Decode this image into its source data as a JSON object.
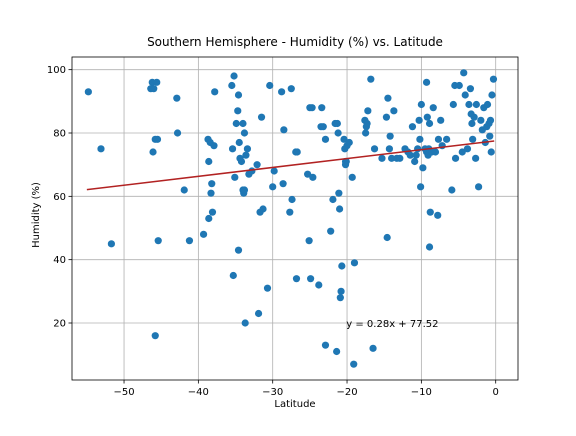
{
  "chart_data": {
    "type": "scatter",
    "title": "Southern Hemisphere - Humidity (%) vs. Latitude",
    "xlabel": "Latitude",
    "ylabel": "Humidity (%)",
    "xlim": [
      -57,
      3
    ],
    "ylim": [
      2,
      104
    ],
    "x_ticks": [
      -50,
      -40,
      -30,
      -20,
      -10,
      0
    ],
    "y_ticks": [
      20,
      40,
      60,
      80,
      100
    ],
    "grid": true,
    "marker_color": "#1f77b4",
    "line_color": "#b22222",
    "regression": {
      "slope": 0.28,
      "intercept": 77.52,
      "x_range": [
        -55,
        -0.2
      ],
      "equation": "y = 0.28x + 77.52",
      "equation_at": [
        -20.1,
        20
      ]
    },
    "points": [
      [
        -54.8,
        93
      ],
      [
        -53.1,
        75
      ],
      [
        -51.7,
        45
      ],
      [
        -46.4,
        94
      ],
      [
        -46.2,
        96
      ],
      [
        -46.0,
        94
      ],
      [
        -45.6,
        96
      ],
      [
        -45.8,
        78
      ],
      [
        -46.1,
        74
      ],
      [
        -45.5,
        78
      ],
      [
        -45.4,
        46
      ],
      [
        -45.8,
        16
      ],
      [
        -42.9,
        91
      ],
      [
        -42.8,
        80
      ],
      [
        -41.9,
        62
      ],
      [
        -41.2,
        46
      ],
      [
        -39.3,
        48
      ],
      [
        -38.7,
        78
      ],
      [
        -38.4,
        77
      ],
      [
        -37.9,
        76
      ],
      [
        -38.6,
        71
      ],
      [
        -38.6,
        53
      ],
      [
        -38.1,
        55
      ],
      [
        -38.3,
        61
      ],
      [
        -38.2,
        64
      ],
      [
        -37.8,
        93
      ],
      [
        -35.5,
        95
      ],
      [
        -35.2,
        98
      ],
      [
        -35.4,
        75
      ],
      [
        -35.1,
        66
      ],
      [
        -35.3,
        35
      ],
      [
        -34.9,
        83
      ],
      [
        -34.6,
        92
      ],
      [
        -34.7,
        87
      ],
      [
        -34.5,
        77
      ],
      [
        -34.4,
        72
      ],
      [
        -34.2,
        71
      ],
      [
        -34.0,
        83
      ],
      [
        -33.8,
        80
      ],
      [
        -33.6,
        73
      ],
      [
        -33.9,
        61
      ],
      [
        -34.0,
        62
      ],
      [
        -33.8,
        62
      ],
      [
        -33.7,
        20
      ],
      [
        -34.6,
        43
      ],
      [
        -33.2,
        67
      ],
      [
        -33.4,
        75
      ],
      [
        -32.8,
        68
      ],
      [
        -32.1,
        70
      ],
      [
        -31.7,
        55
      ],
      [
        -31.5,
        85
      ],
      [
        -31.3,
        56
      ],
      [
        -30.7,
        31
      ],
      [
        -31.9,
        23
      ],
      [
        -30.4,
        95
      ],
      [
        -30.0,
        63
      ],
      [
        -29.8,
        68
      ],
      [
        -28.8,
        93
      ],
      [
        -28.5,
        81
      ],
      [
        -28.6,
        64
      ],
      [
        -27.7,
        55
      ],
      [
        -27.4,
        59
      ],
      [
        -27.5,
        94
      ],
      [
        -26.9,
        74
      ],
      [
        -26.7,
        74
      ],
      [
        -26.8,
        34
      ],
      [
        -25.3,
        67
      ],
      [
        -25.0,
        88
      ],
      [
        -25.1,
        46
      ],
      [
        -24.7,
        88
      ],
      [
        -24.6,
        66
      ],
      [
        -24.9,
        34
      ],
      [
        -23.8,
        32
      ],
      [
        -23.5,
        82
      ],
      [
        -23.4,
        88
      ],
      [
        -23.2,
        82
      ],
      [
        -22.9,
        78
      ],
      [
        -22.9,
        13
      ],
      [
        -22.2,
        49
      ],
      [
        -21.9,
        59
      ],
      [
        -21.6,
        83
      ],
      [
        -21.3,
        83
      ],
      [
        -21.2,
        80
      ],
      [
        -21.1,
        61
      ],
      [
        -21.0,
        56
      ],
      [
        -21.4,
        11
      ],
      [
        -20.9,
        28
      ],
      [
        -20.8,
        30
      ],
      [
        -20.7,
        38
      ],
      [
        -20.4,
        78
      ],
      [
        -20.3,
        75
      ],
      [
        -20.2,
        71
      ],
      [
        -20.1,
        71
      ],
      [
        -20.2,
        70
      ],
      [
        -20.0,
        76
      ],
      [
        -19.7,
        77
      ],
      [
        -19.3,
        66
      ],
      [
        -19.1,
        7
      ],
      [
        -19.0,
        39
      ],
      [
        -17.6,
        84
      ],
      [
        -17.5,
        80
      ],
      [
        -17.4,
        82
      ],
      [
        -17.3,
        83
      ],
      [
        -17.2,
        87
      ],
      [
        -16.8,
        97
      ],
      [
        -16.3,
        75
      ],
      [
        -16.5,
        12
      ],
      [
        -15.3,
        72
      ],
      [
        -14.7,
        85
      ],
      [
        -14.5,
        91
      ],
      [
        -14.6,
        47
      ],
      [
        -14.2,
        79
      ],
      [
        -14.3,
        75
      ],
      [
        -14.0,
        72
      ],
      [
        -13.7,
        87
      ],
      [
        -13.3,
        72
      ],
      [
        -12.9,
        72
      ],
      [
        -12.2,
        75
      ],
      [
        -11.8,
        74
      ],
      [
        -11.5,
        73
      ],
      [
        -11.2,
        82
      ],
      [
        -10.9,
        71
      ],
      [
        -10.7,
        73
      ],
      [
        -10.5,
        75
      ],
      [
        -10.3,
        84
      ],
      [
        -10.2,
        78
      ],
      [
        -10.0,
        89
      ],
      [
        -10.1,
        63
      ],
      [
        -9.8,
        69
      ],
      [
        -9.5,
        75
      ],
      [
        -9.3,
        96
      ],
      [
        -9.2,
        85
      ],
      [
        -9.3,
        74
      ],
      [
        -9.1,
        73
      ],
      [
        -9.0,
        75
      ],
      [
        -8.9,
        83
      ],
      [
        -8.8,
        55
      ],
      [
        -8.9,
        44
      ],
      [
        -8.6,
        74
      ],
      [
        -8.4,
        88
      ],
      [
        -8.1,
        74
      ],
      [
        -7.8,
        54
      ],
      [
        -7.7,
        78
      ],
      [
        -7.4,
        84
      ],
      [
        -7.2,
        76
      ],
      [
        -6.6,
        78
      ],
      [
        -5.9,
        62
      ],
      [
        -5.7,
        89
      ],
      [
        -5.5,
        95
      ],
      [
        -5.4,
        72
      ],
      [
        -4.9,
        95
      ],
      [
        -4.5,
        74
      ],
      [
        -4.3,
        99
      ],
      [
        -4.1,
        92
      ],
      [
        -3.8,
        75
      ],
      [
        -3.6,
        89
      ],
      [
        -3.4,
        94
      ],
      [
        -3.3,
        86
      ],
      [
        -3.2,
        83
      ],
      [
        -3.1,
        78
      ],
      [
        -2.9,
        85
      ],
      [
        -2.7,
        72
      ],
      [
        -2.6,
        89
      ],
      [
        -2.3,
        63
      ],
      [
        -2.0,
        84
      ],
      [
        -1.8,
        81
      ],
      [
        -1.6,
        88
      ],
      [
        -1.4,
        77
      ],
      [
        -1.2,
        82
      ],
      [
        -1.1,
        89
      ],
      [
        -0.9,
        83
      ],
      [
        -0.8,
        79
      ],
      [
        -0.7,
        84
      ],
      [
        -0.6,
        74
      ],
      [
        -0.5,
        92
      ],
      [
        -0.3,
        97
      ]
    ]
  }
}
